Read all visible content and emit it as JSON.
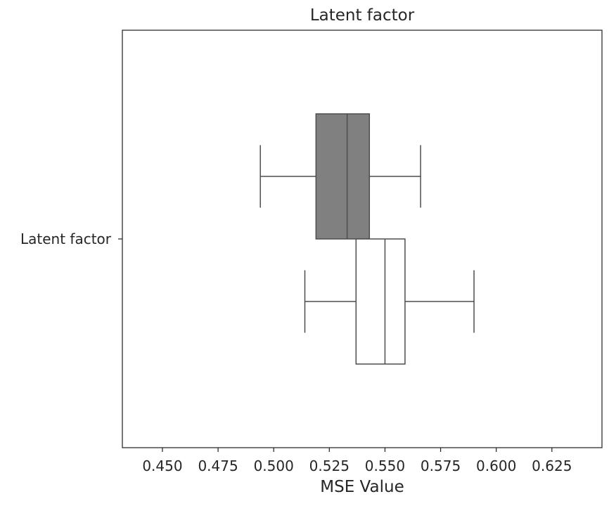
{
  "chart_data": {
    "type": "box",
    "orientation": "horizontal",
    "title": "Latent factor",
    "xlabel": "MSE Value",
    "ylabel": "",
    "xlim": [
      0.432,
      0.6475
    ],
    "xticks": [
      0.45,
      0.475,
      0.5,
      0.525,
      0.55,
      0.575,
      0.6,
      0.625
    ],
    "xtick_labels": [
      "0.450",
      "0.475",
      "0.500",
      "0.525",
      "0.550",
      "0.575",
      "0.600",
      "0.625"
    ],
    "categories": [
      "Latent factor"
    ],
    "grid": false,
    "legend": "none",
    "series": [
      {
        "fill": "#808080",
        "stroke": "#4d4d4d",
        "whisker_low": 0.494,
        "q1": 0.519,
        "median": 0.533,
        "q3": 0.543,
        "whisker_high": 0.566
      },
      {
        "fill": "#ffffff",
        "stroke": "#4d4d4d",
        "whisker_low": 0.514,
        "q1": 0.537,
        "median": 0.55,
        "q3": 0.559,
        "whisker_high": 0.59
      }
    ]
  }
}
